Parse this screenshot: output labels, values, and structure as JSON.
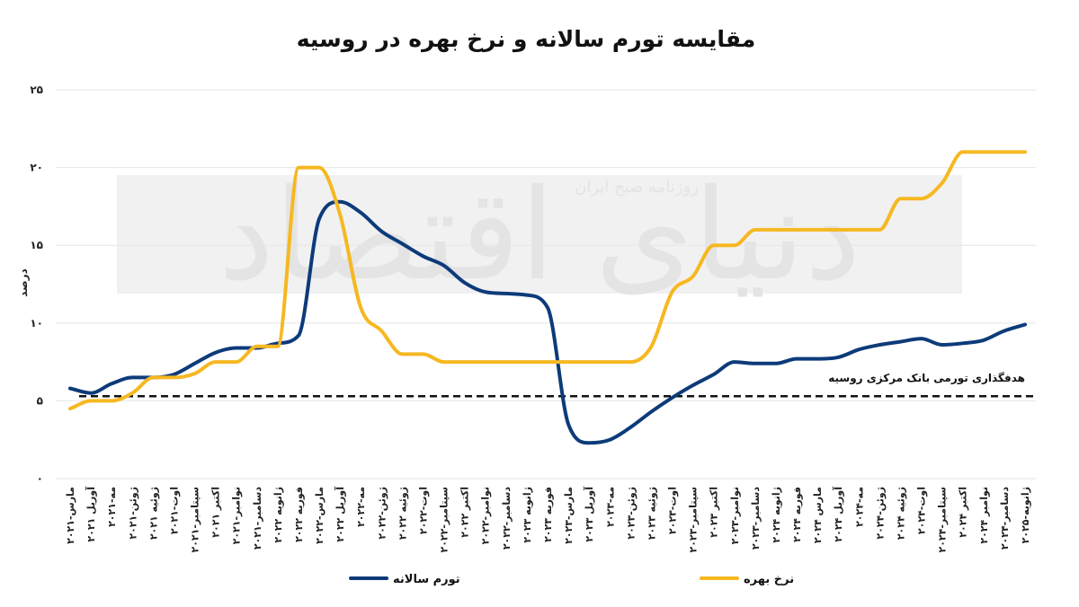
{
  "chart_data": {
    "type": "line",
    "title": "مقایسه تورم سالانه و نرخ بهره در روسیه",
    "ylabel": "درصد",
    "ylim": [
      0,
      25
    ],
    "yticks": [
      "۰",
      "۵",
      "۱۰",
      "۱۵",
      "۲۰",
      "۲۵"
    ],
    "categories": [
      "مارس-۲۰۲۱",
      "آوریل ۲۰۲۱",
      "مه-۲۰۲۱",
      "ژوئن-۲۰۲۱",
      "ژوئیه ۲۰۲۱",
      "اوت-۲۰۲۱",
      "سپتامبر-۲۰۲۱",
      "اکتبر ۲۰۲۱",
      "نوامبر-۲۰۲۱",
      "دسامبر-۲۰۲۱",
      "ژانویه ۲۰۲۲",
      "فوریه ۲۰۲۲",
      "مارس-۲۰۲۲",
      "آوریل ۲۰۲۲",
      "مه-۲۰۲۲",
      "ژوئن-۲۰۲۲",
      "ژوئیه ۲۰۲۲",
      "اوت-۲۰۲۲",
      "سپتامبر-۲۰۲۲",
      "اکتبر ۲۰۲۲",
      "نوامبر-۲۰۲۲",
      "دسامبر-۲۰۲۲",
      "ژانویه ۲۰۲۳",
      "فوریه ۲۰۲۳",
      "مارس-۲۰۲۳",
      "آوریل ۲۰۲۳",
      "مه-۲۰۲۳",
      "ژوئن-۲۰۲۳",
      "ژوئیه ۲۰۲۳",
      "اوت-۲۰۲۳",
      "سپتامبر-۲۰۲۳",
      "اکتبر ۲۰۲۳",
      "نوامبر-۲۰۲۳",
      "دسامبر-۲۰۲۳",
      "ژانویه ۲۰۲۴",
      "فوریه ۲۰۲۴",
      "مارس ۲۰۲۴",
      "آوریل ۲۰۲۴",
      "مه-۲۰۲۴",
      "ژوئن-۲۰۲۴",
      "ژوئیه ۲۰۲۴",
      "اوت-۲۰۲۴",
      "سپتامبر-۲۰۲۴",
      "اکتبر ۲۰۲۴",
      "نوامبر ۲۰۲۴",
      "دسامبر-۲۰۲۴",
      "ژانویه-۲۰۲۵"
    ],
    "series": [
      {
        "name": "تورم سالانه",
        "color": "#0d3b7a",
        "values": [
          5.8,
          5.5,
          6.1,
          6.5,
          6.5,
          6.7,
          7.4,
          8.1,
          8.4,
          8.4,
          8.7,
          9.2,
          16.7,
          17.8,
          17.1,
          15.9,
          15.1,
          14.3,
          13.7,
          12.6,
          12.0,
          11.9,
          11.8,
          11.0,
          3.5,
          2.3,
          2.5,
          3.3,
          4.3,
          5.2,
          6.0,
          6.7,
          7.5,
          7.4,
          7.4,
          7.7,
          7.7,
          7.8,
          8.3,
          8.6,
          8.8,
          9.0,
          8.6,
          8.7,
          8.9,
          9.5,
          9.9
        ],
        "curve_shape": [
          4,
          2.5,
          3.2,
          2,
          1.2,
          1.5,
          2.1,
          3.5,
          1.2,
          1.8,
          2,
          3.5,
          2.2,
          3.5,
          2.8,
          2,
          2.4,
          2,
          2.5,
          3.5,
          2,
          2.5,
          3.6,
          2,
          2,
          2,
          3.2,
          2,
          1.8,
          3.5,
          2.2,
          2,
          2.5,
          2.7,
          2.2,
          2.2,
          2,
          2.5,
          2.5,
          2,
          2.4,
          2.7,
          2,
          2,
          2.5,
          2.5,
          1.5
        ]
      },
      {
        "name": "نرخ بهره",
        "color": "#f6b821",
        "values": [
          4.5,
          5.0,
          5.0,
          5.5,
          6.5,
          6.5,
          6.75,
          7.5,
          7.5,
          8.5,
          8.5,
          20.0,
          20.0,
          17.0,
          11.0,
          9.5,
          8.0,
          8.0,
          7.5,
          7.5,
          7.5,
          7.5,
          7.5,
          7.5,
          7.5,
          7.5,
          7.5,
          7.5,
          8.5,
          12.0,
          13.0,
          15.0,
          15.0,
          16.0,
          16.0,
          16.0,
          16.0,
          16.0,
          16.0,
          16.0,
          18.0,
          18.0,
          19.0,
          21.0,
          21.0,
          21.0,
          21.0
        ],
        "curve_shape": [
          2,
          1.2,
          2.8,
          2.5,
          2,
          3,
          2,
          3.5,
          1.2,
          2,
          2.5,
          3.5,
          3.8,
          2.8,
          3,
          2.2,
          3.5,
          2.4,
          2.4,
          2.7,
          2.7,
          2.7,
          2.7,
          2.7,
          3.5,
          1.5,
          2,
          3,
          2.5,
          2.1,
          3.5,
          2.8,
          2.2,
          2,
          3,
          2,
          1.2,
          1.2,
          1.2,
          1.6,
          2,
          2,
          3,
          1.5,
          1.8,
          2.5,
          1.7
        ]
      }
    ],
    "reference_line": {
      "value": 5.3,
      "label": "هدفگذاری تورمی بانک مرکزی روسیه",
      "style": "dashed"
    },
    "legend_placement": "bottom",
    "grid": true
  },
  "watermark": {
    "main": "دنیای اقتصاد",
    "sub": "روزنامه صبح ایران"
  }
}
